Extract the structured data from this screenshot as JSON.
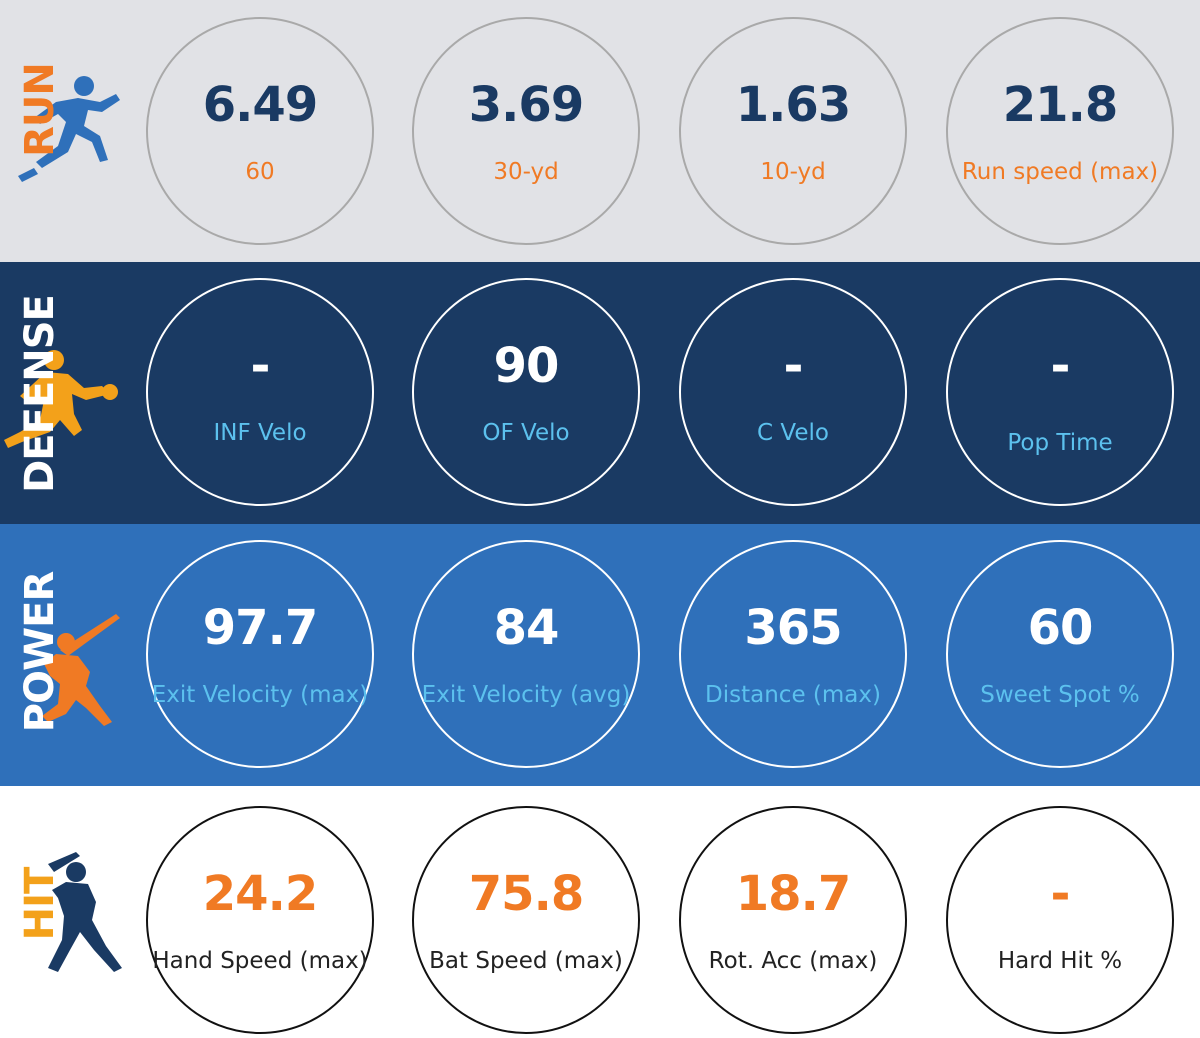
{
  "colors": {
    "orange": "#f07a24",
    "navy": "#1a3a63",
    "blue": "#2f70ba",
    "light_blue": "#5cc1ee",
    "light_gray": "#e1e2e6",
    "white": "#ffffff",
    "dark_text": "#222222"
  },
  "run": {
    "title": "RUN",
    "icon": "runner-icon",
    "metrics": [
      {
        "value": "6.49",
        "label": "60"
      },
      {
        "value": "3.69",
        "label": "30-yd"
      },
      {
        "value": "1.63",
        "label": "10-yd"
      },
      {
        "value": "21.8",
        "label": "Run speed (max)"
      }
    ]
  },
  "defense": {
    "title": "DEFENSE",
    "icon": "fielder-icon",
    "metrics": [
      {
        "value": "-",
        "label": "INF Velo"
      },
      {
        "value": "90",
        "label": "OF Velo"
      },
      {
        "value": "-",
        "label": "C Velo"
      },
      {
        "value": "-",
        "label": "Pop Time"
      }
    ]
  },
  "power": {
    "title": "POWER",
    "icon": "power-hitter-icon",
    "metrics": [
      {
        "value": "97.7",
        "label": "Exit Velocity (max)"
      },
      {
        "value": "84",
        "label": "Exit Velocity (avg)"
      },
      {
        "value": "365",
        "label": "Distance (max)"
      },
      {
        "value": "60",
        "label": "Sweet Spot %"
      }
    ]
  },
  "hit": {
    "title": "HIT",
    "icon": "batter-icon",
    "metrics": [
      {
        "value": "24.2",
        "label": "Hand Speed (max)"
      },
      {
        "value": "75.8",
        "label": "Bat Speed (max)"
      },
      {
        "value": "18.7",
        "label": "Rot. Acc (max)"
      },
      {
        "value": "-",
        "label": "Hard Hit %"
      }
    ]
  }
}
